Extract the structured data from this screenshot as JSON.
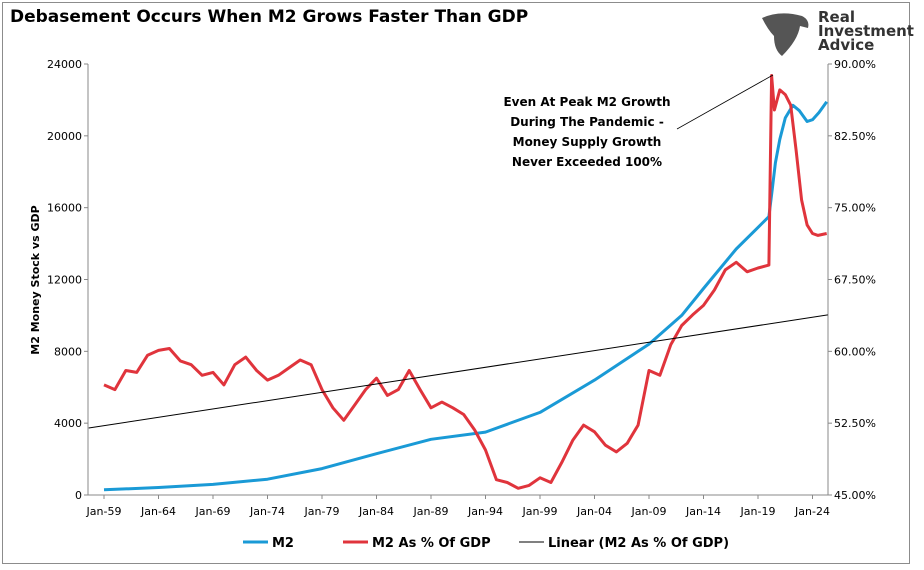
{
  "chart_data": {
    "type": "line",
    "title": "Debasement Occurs When M2 Grows Faster Than GDP",
    "ylabel": "M2 Money Stock vs GDP",
    "xlabel": "",
    "x_ticks": [
      "Jan-59",
      "Jan-64",
      "Jan-69",
      "Jan-74",
      "Jan-79",
      "Jan-84",
      "Jan-89",
      "Jan-94",
      "Jan-99",
      "Jan-04",
      "Jan-09",
      "Jan-14",
      "Jan-19",
      "Jan-24"
    ],
    "y_left": {
      "ticks": [
        "0",
        "4000",
        "8000",
        "12000",
        "16000",
        "20000",
        "24000"
      ],
      "range": [
        0,
        24000
      ]
    },
    "y_right": {
      "ticks": [
        "45.00%",
        "52.50%",
        "60.00%",
        "67.50%",
        "75.00%",
        "82.50%",
        "90.00%"
      ],
      "range": [
        45,
        90
      ]
    },
    "grid": false,
    "legend_position": "bottom",
    "series": [
      {
        "name": "M2",
        "axis": "left",
        "color": "#1a9ad6",
        "x": [
          1959,
          1964,
          1969,
          1974,
          1979,
          1984,
          1989,
          1994,
          1999,
          2004,
          2009,
          2012,
          2014,
          2017,
          2019,
          2020,
          2020.3,
          2020.6,
          2021,
          2021.5,
          2022.2,
          2022.8,
          2023.5,
          2024,
          2024.6,
          2025.3
        ],
        "y": [
          290,
          420,
          590,
          880,
          1470,
          2300,
          3100,
          3500,
          4600,
          6400,
          8400,
          10000,
          11500,
          13700,
          14900,
          15500,
          17000,
          18500,
          19800,
          21000,
          21700,
          21400,
          20800,
          20900,
          21300,
          21900
        ]
      },
      {
        "name": "M2 As % Of GDP",
        "axis": "right",
        "color": "#e0343c",
        "x": [
          1959,
          1960,
          1961,
          1962,
          1963,
          1964,
          1965,
          1966,
          1967,
          1968,
          1969,
          1970,
          1971,
          1972,
          1973,
          1974,
          1975,
          1976,
          1977,
          1978,
          1979,
          1980,
          1981,
          1982,
          1983,
          1984,
          1985,
          1986,
          1987,
          1988,
          1989,
          1990,
          1991,
          1992,
          1993,
          1994,
          1995,
          1996,
          1997,
          1998,
          1999,
          2000,
          2001,
          2002,
          2003,
          2004,
          2005,
          2006,
          2007,
          2008,
          2009,
          2010,
          2011,
          2012,
          2013,
          2014,
          2015,
          2016,
          2017,
          2018,
          2019,
          2020,
          2020.25,
          2020.5,
          2021,
          2021.5,
          2022,
          2022.5,
          2023,
          2023.5,
          2024,
          2024.5,
          2025.3
        ],
        "y": [
          56.5,
          56,
          58,
          57.8,
          59.6,
          60.1,
          60.3,
          59,
          58.6,
          57.5,
          57.8,
          56.5,
          58.6,
          59.4,
          58,
          57,
          57.5,
          58.3,
          59.1,
          58.6,
          56,
          54.1,
          52.8,
          54.4,
          56,
          57.2,
          55.4,
          56,
          58,
          56,
          54.1,
          54.7,
          54.1,
          53.4,
          51.8,
          49.7,
          46.6,
          46.3,
          45.7,
          46,
          46.8,
          46.3,
          48.4,
          50.7,
          52.3,
          51.6,
          50.2,
          49.5,
          50.4,
          52.3,
          58,
          57.5,
          60.7,
          62.7,
          63.8,
          64.8,
          66.4,
          68.5,
          69.3,
          68.3,
          68.7,
          69,
          88.8,
          85.2,
          87.3,
          86.8,
          85.7,
          81,
          75.8,
          73.2,
          72.3,
          72.1,
          72.3
        ]
      },
      {
        "name": "Linear (M2 As % Of GDP)",
        "axis": "right",
        "color": "#000000",
        "x": [
          1957.6,
          2025.4
        ],
        "y": [
          52.0,
          63.8
        ]
      }
    ],
    "annotation": [
      "Even At Peak M2 Growth",
      "During The Pandemic -",
      "Money Supply Growth",
      "Never Exceeded 100%"
    ]
  },
  "logo": {
    "lines": [
      "Real",
      "Investment",
      "Advice"
    ]
  }
}
